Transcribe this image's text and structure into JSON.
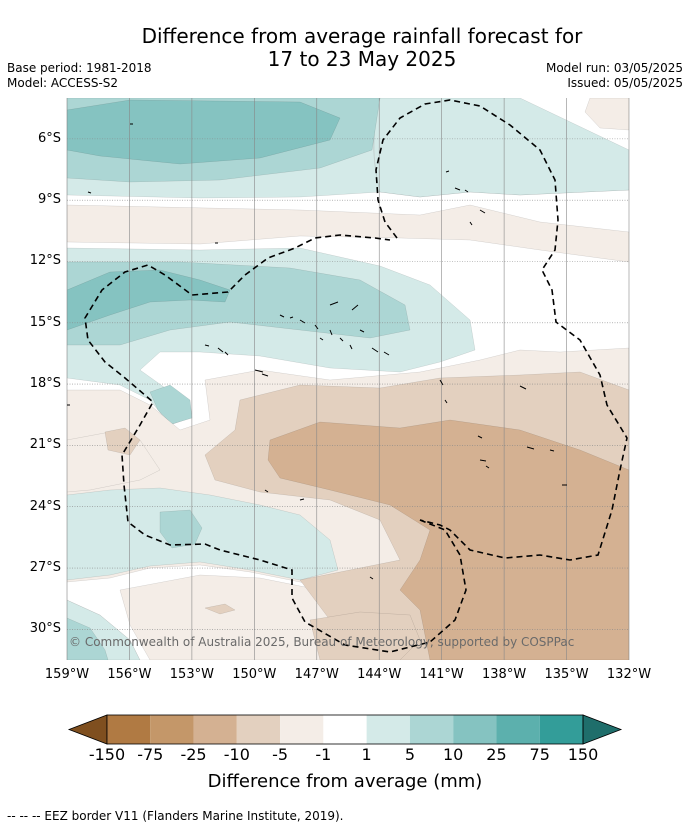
{
  "header": {
    "title_line1": "Difference from average rainfall forecast for",
    "title_line2": "17 to 23 May 2025",
    "base_period": "Base period: 1981-2018",
    "model": "Model: ACCESS-S2",
    "model_run": "Model run: 03/05/2025",
    "issued": "Issued: 05/05/2025"
  },
  "map": {
    "lat_labels": [
      "6°S",
      "9°S",
      "12°S",
      "15°S",
      "18°S",
      "21°S",
      "24°S",
      "27°S",
      "30°S"
    ],
    "lon_labels": [
      "159°W",
      "156°W",
      "153°W",
      "150°W",
      "147°W",
      "144°W",
      "141°W",
      "138°W",
      "135°W",
      "132°W"
    ],
    "copyright": "© Commonwealth of Australia 2025, Bureau of Meteorology, supported by COSPPac",
    "extent": {
      "lon_west": -159,
      "lon_east": -132,
      "lat_north": -4,
      "lat_south": -31.5
    },
    "colors": {
      "m150": "#7f4f1f",
      "m75": "#b07a43",
      "m25": "#c49769",
      "m10": "#d4b192",
      "m5": "#e3d0bf",
      "m1": "#f4ede7",
      "zero": "#ffffff",
      "p1": "#d4eae8",
      "p5": "#acd6d4",
      "p10": "#85c3c1",
      "p25": "#5cb0ad",
      "p75": "#339d99",
      "p150": "#1f6e6b"
    }
  },
  "colorbar": {
    "ticks": [
      "-150",
      "-75",
      "-25",
      "-10",
      "-5",
      "-1",
      "1",
      "5",
      "10",
      "25",
      "75",
      "150"
    ],
    "label": "Difference from average (mm)"
  },
  "legend": {
    "eez_label": "--  --  -- EEZ border V11 (Flanders Marine Institute, 2019)."
  }
}
